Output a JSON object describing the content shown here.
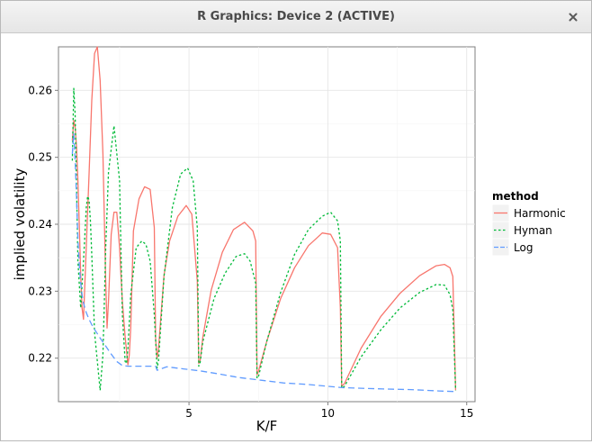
{
  "window": {
    "title": "R Graphics: Device 2 (ACTIVE)",
    "close_icon": "close-icon"
  },
  "colors": {
    "panel_bg": "#ffffff",
    "panel_border": "#7f7f7f",
    "grid_major": "#e6e6e6",
    "grid_minor": "#f3f3f3",
    "harmonic": "#f8766d",
    "hyman": "#00ba38",
    "log": "#619cff"
  },
  "chart_data": {
    "type": "line",
    "xlabel": "K/F",
    "ylabel": "implied volatility",
    "xlim": [
      0.3,
      15.3
    ],
    "ylim": [
      0.2135,
      0.2665
    ],
    "x_ticks": [
      5,
      10,
      15
    ],
    "x_tick_labels": [
      "5",
      "10",
      "15"
    ],
    "y_ticks": [
      0.22,
      0.23,
      0.24,
      0.25,
      0.26
    ],
    "y_tick_labels": [
      "0.22",
      "0.23",
      "0.24",
      "0.25",
      "0.26"
    ],
    "grid": true,
    "legend": {
      "title": "method",
      "position": "right"
    },
    "series": [
      {
        "name": "Harmonic",
        "color": "#f8766d",
        "dash": "solid",
        "x": [
          0.8,
          0.85,
          0.9,
          0.95,
          1.0,
          1.05,
          1.1,
          1.15,
          1.2,
          1.4,
          1.5,
          1.6,
          1.7,
          1.8,
          1.9,
          2.0,
          2.05,
          2.1,
          2.2,
          2.3,
          2.4,
          2.5,
          2.6,
          2.7,
          2.8,
          2.85,
          2.9,
          3.0,
          3.2,
          3.4,
          3.6,
          3.75,
          3.8,
          3.85,
          3.9,
          4.1,
          4.3,
          4.6,
          4.9,
          5.1,
          5.3,
          5.35,
          5.4,
          5.5,
          5.8,
          6.2,
          6.6,
          7.0,
          7.3,
          7.4,
          7.45,
          7.5,
          7.8,
          8.3,
          8.8,
          9.3,
          9.8,
          10.1,
          10.35,
          10.45,
          10.5,
          10.6,
          11.2,
          11.9,
          12.6,
          13.3,
          13.9,
          14.2,
          14.4,
          14.5,
          14.6
        ],
        "y": [
          0.2525,
          0.2555,
          0.2545,
          0.2515,
          0.2465,
          0.2395,
          0.2325,
          0.2275,
          0.2258,
          0.2475,
          0.2585,
          0.2655,
          0.2665,
          0.2615,
          0.2505,
          0.2315,
          0.2245,
          0.2285,
          0.2385,
          0.2418,
          0.2418,
          0.2365,
          0.2285,
          0.2232,
          0.219,
          0.2205,
          0.2245,
          0.239,
          0.2438,
          0.2456,
          0.2452,
          0.2395,
          0.2228,
          0.22,
          0.2213,
          0.2324,
          0.2375,
          0.2412,
          0.2428,
          0.2415,
          0.2315,
          0.2192,
          0.2196,
          0.2232,
          0.2302,
          0.2358,
          0.2392,
          0.2403,
          0.239,
          0.2375,
          0.2175,
          0.218,
          0.2225,
          0.2289,
          0.2335,
          0.2368,
          0.2387,
          0.2385,
          0.2365,
          0.2275,
          0.2158,
          0.2162,
          0.2215,
          0.2262,
          0.2297,
          0.2323,
          0.2338,
          0.234,
          0.2335,
          0.2322,
          0.2152
        ]
      },
      {
        "name": "Hyman",
        "color": "#00ba38",
        "dash": "dotted",
        "x": [
          0.8,
          0.85,
          0.9,
          0.95,
          1.0,
          1.1,
          1.2,
          1.3,
          1.35,
          1.4,
          1.45,
          1.5,
          1.6,
          1.8,
          1.9,
          1.95,
          2.0,
          2.1,
          2.3,
          2.5,
          2.55,
          2.6,
          2.7,
          2.75,
          2.8,
          2.9,
          3.1,
          3.3,
          3.45,
          3.6,
          3.75,
          3.85,
          3.9,
          4.1,
          4.4,
          4.7,
          4.95,
          5.15,
          5.3,
          5.35,
          5.4,
          5.5,
          5.9,
          6.3,
          6.7,
          7.0,
          7.2,
          7.4,
          7.45,
          7.5,
          7.8,
          8.3,
          8.8,
          9.3,
          9.8,
          10.1,
          10.35,
          10.45,
          10.5,
          10.6,
          11.2,
          11.9,
          12.6,
          13.3,
          13.9,
          14.2,
          14.4,
          14.5,
          14.6
        ],
        "y": [
          0.2495,
          0.2603,
          0.2565,
          0.2455,
          0.2345,
          0.2275,
          0.2345,
          0.2425,
          0.2442,
          0.2436,
          0.2405,
          0.2355,
          0.2238,
          0.2152,
          0.2205,
          0.228,
          0.2365,
          0.2478,
          0.2547,
          0.2465,
          0.2365,
          0.2265,
          0.2195,
          0.2192,
          0.2215,
          0.2295,
          0.2365,
          0.2375,
          0.237,
          0.2345,
          0.2265,
          0.2185,
          0.2195,
          0.2322,
          0.2425,
          0.2475,
          0.2484,
          0.2465,
          0.2395,
          0.2188,
          0.2193,
          0.2225,
          0.2289,
          0.2327,
          0.2352,
          0.2356,
          0.2345,
          0.2312,
          0.217,
          0.2172,
          0.2225,
          0.2298,
          0.2355,
          0.2392,
          0.2412,
          0.2418,
          0.2405,
          0.2375,
          0.2155,
          0.2158,
          0.2202,
          0.2242,
          0.2275,
          0.2298,
          0.231,
          0.2309,
          0.2295,
          0.2272,
          0.2152
        ]
      },
      {
        "name": "Log",
        "color": "#619cff",
        "dash": "dashed",
        "x": [
          0.8,
          0.85,
          0.9,
          0.95,
          1.0,
          1.05,
          1.1,
          1.15,
          1.2,
          1.3,
          1.4,
          1.5,
          1.6,
          1.8,
          2.0,
          2.2,
          2.4,
          2.6,
          2.8,
          3.0,
          3.2,
          3.4,
          3.6,
          3.75,
          3.8,
          3.85,
          4.2,
          4.8,
          5.4,
          6.0,
          6.8,
          7.6,
          8.4,
          9.2,
          10.0,
          10.5,
          11.2,
          12.0,
          13.0,
          14.0,
          14.6
        ],
        "y": [
          0.2505,
          0.2535,
          0.2495,
          0.2438,
          0.2378,
          0.2338,
          0.2312,
          0.2295,
          0.2282,
          0.2268,
          0.2258,
          0.225,
          0.2243,
          0.223,
          0.2218,
          0.2206,
          0.2195,
          0.2189,
          0.2188,
          0.2188,
          0.2188,
          0.2188,
          0.2188,
          0.2188,
          0.2188,
          0.2182,
          0.2187,
          0.2184,
          0.2181,
          0.2177,
          0.2171,
          0.2167,
          0.2163,
          0.2161,
          0.2158,
          0.2156,
          0.2155,
          0.2154,
          0.2153,
          0.2151,
          0.215
        ]
      }
    ]
  }
}
